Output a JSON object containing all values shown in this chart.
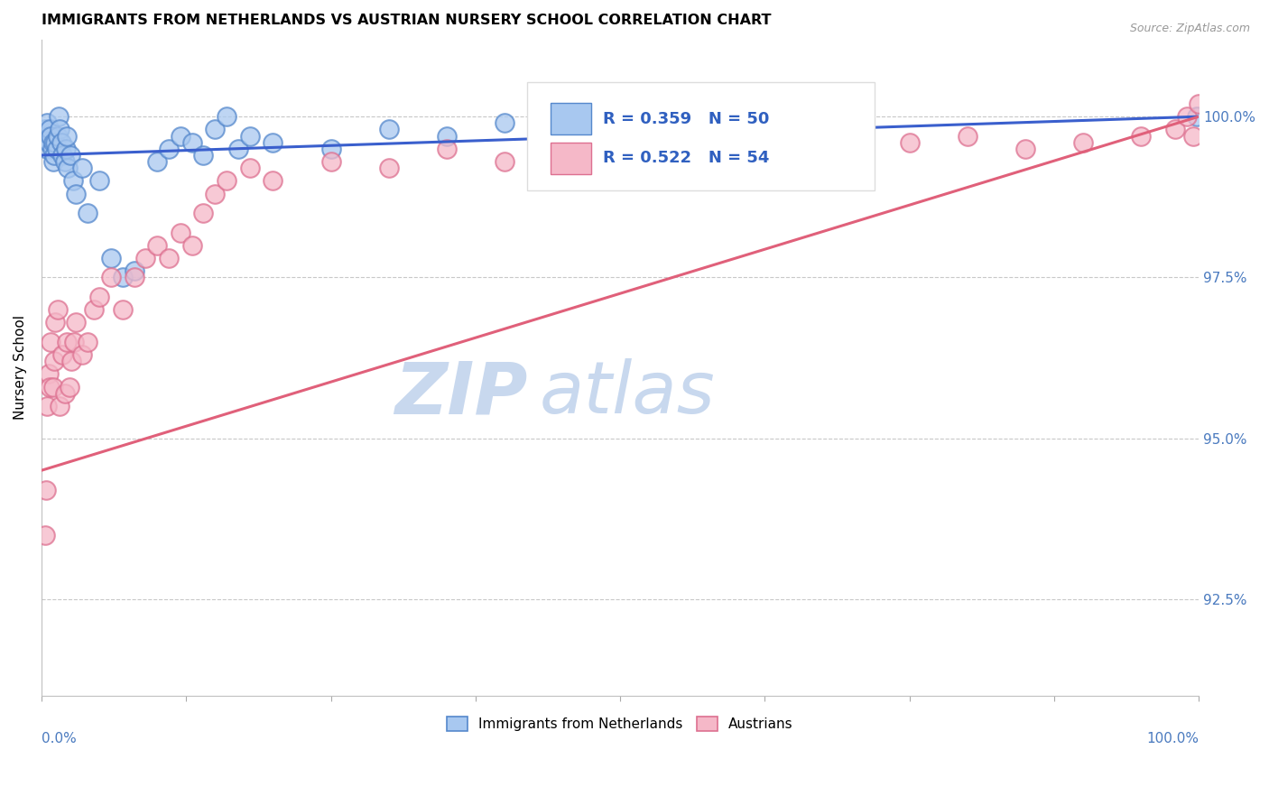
{
  "title": "IMMIGRANTS FROM NETHERLANDS VS AUSTRIAN NURSERY SCHOOL CORRELATION CHART",
  "source_text": "Source: ZipAtlas.com",
  "ylabel": "Nursery School",
  "legend_label1": "Immigrants from Netherlands",
  "legend_label2": "Austrians",
  "legend_r1": "R = 0.359",
  "legend_n1": "N = 50",
  "legend_r2": "R = 0.522",
  "legend_n2": "N = 54",
  "ytick_labels": [
    "92.5%",
    "95.0%",
    "97.5%",
    "100.0%"
  ],
  "ytick_values": [
    92.5,
    95.0,
    97.5,
    100.0
  ],
  "xlim": [
    0.0,
    100.0
  ],
  "ylim": [
    91.0,
    101.2
  ],
  "color_blue": "#a8c8f0",
  "color_pink": "#f5b8c8",
  "color_blue_line": "#3a5fcd",
  "color_pink_line": "#e0607a",
  "color_blue_edge": "#5588cc",
  "color_pink_edge": "#dd7090",
  "watermark_zip_color": "#c8d8ee",
  "watermark_atlas_color": "#c8d8ee",
  "blue_x": [
    0.3,
    0.4,
    0.5,
    0.5,
    0.6,
    0.7,
    0.8,
    0.9,
    1.0,
    1.0,
    1.1,
    1.2,
    1.3,
    1.4,
    1.5,
    1.6,
    1.7,
    1.8,
    2.0,
    2.1,
    2.2,
    2.3,
    2.5,
    2.7,
    3.0,
    3.5,
    4.0,
    5.0,
    6.0,
    7.0,
    8.0,
    10.0,
    11.0,
    12.0,
    13.0,
    14.0,
    15.0,
    16.0,
    17.0,
    18.0,
    20.0,
    25.0,
    30.0,
    35.0,
    40.0,
    45.0,
    50.0,
    55.0,
    60.0,
    99.8
  ],
  "blue_y": [
    99.8,
    99.7,
    99.9,
    99.5,
    99.6,
    99.8,
    99.7,
    99.5,
    99.6,
    99.3,
    99.4,
    99.6,
    99.5,
    99.7,
    100.0,
    99.8,
    99.6,
    99.4,
    99.3,
    99.5,
    99.7,
    99.2,
    99.4,
    99.0,
    98.8,
    99.2,
    98.5,
    99.0,
    97.8,
    97.5,
    97.6,
    99.3,
    99.5,
    99.7,
    99.6,
    99.4,
    99.8,
    100.0,
    99.5,
    99.7,
    99.6,
    99.5,
    99.8,
    99.7,
    99.9,
    99.6,
    99.8,
    99.7,
    99.5,
    100.0
  ],
  "pink_x": [
    0.3,
    0.4,
    0.5,
    0.6,
    0.7,
    0.8,
    1.0,
    1.1,
    1.2,
    1.4,
    1.6,
    1.8,
    2.0,
    2.2,
    2.4,
    2.6,
    2.8,
    3.0,
    3.5,
    4.0,
    4.5,
    5.0,
    6.0,
    7.0,
    8.0,
    9.0,
    10.0,
    11.0,
    12.0,
    13.0,
    14.0,
    15.0,
    16.0,
    18.0,
    20.0,
    25.0,
    30.0,
    35.0,
    40.0,
    45.0,
    50.0,
    55.0,
    60.0,
    65.0,
    70.0,
    75.0,
    80.0,
    85.0,
    90.0,
    95.0,
    98.0,
    99.0,
    99.5,
    100.0
  ],
  "pink_y": [
    93.5,
    94.2,
    95.5,
    96.0,
    95.8,
    96.5,
    95.8,
    96.2,
    96.8,
    97.0,
    95.5,
    96.3,
    95.7,
    96.5,
    95.8,
    96.2,
    96.5,
    96.8,
    96.3,
    96.5,
    97.0,
    97.2,
    97.5,
    97.0,
    97.5,
    97.8,
    98.0,
    97.8,
    98.2,
    98.0,
    98.5,
    98.8,
    99.0,
    99.2,
    99.0,
    99.3,
    99.2,
    99.5,
    99.3,
    99.6,
    99.5,
    99.7,
    99.6,
    99.4,
    99.5,
    99.6,
    99.7,
    99.5,
    99.6,
    99.7,
    99.8,
    100.0,
    99.7,
    100.2
  ],
  "blue_trend_x": [
    0.0,
    100.0
  ],
  "blue_trend_y_start": 99.4,
  "blue_trend_y_end": 100.0,
  "pink_trend_x": [
    0.0,
    100.0
  ],
  "pink_trend_y_start": 94.5,
  "pink_trend_y_end": 100.0
}
